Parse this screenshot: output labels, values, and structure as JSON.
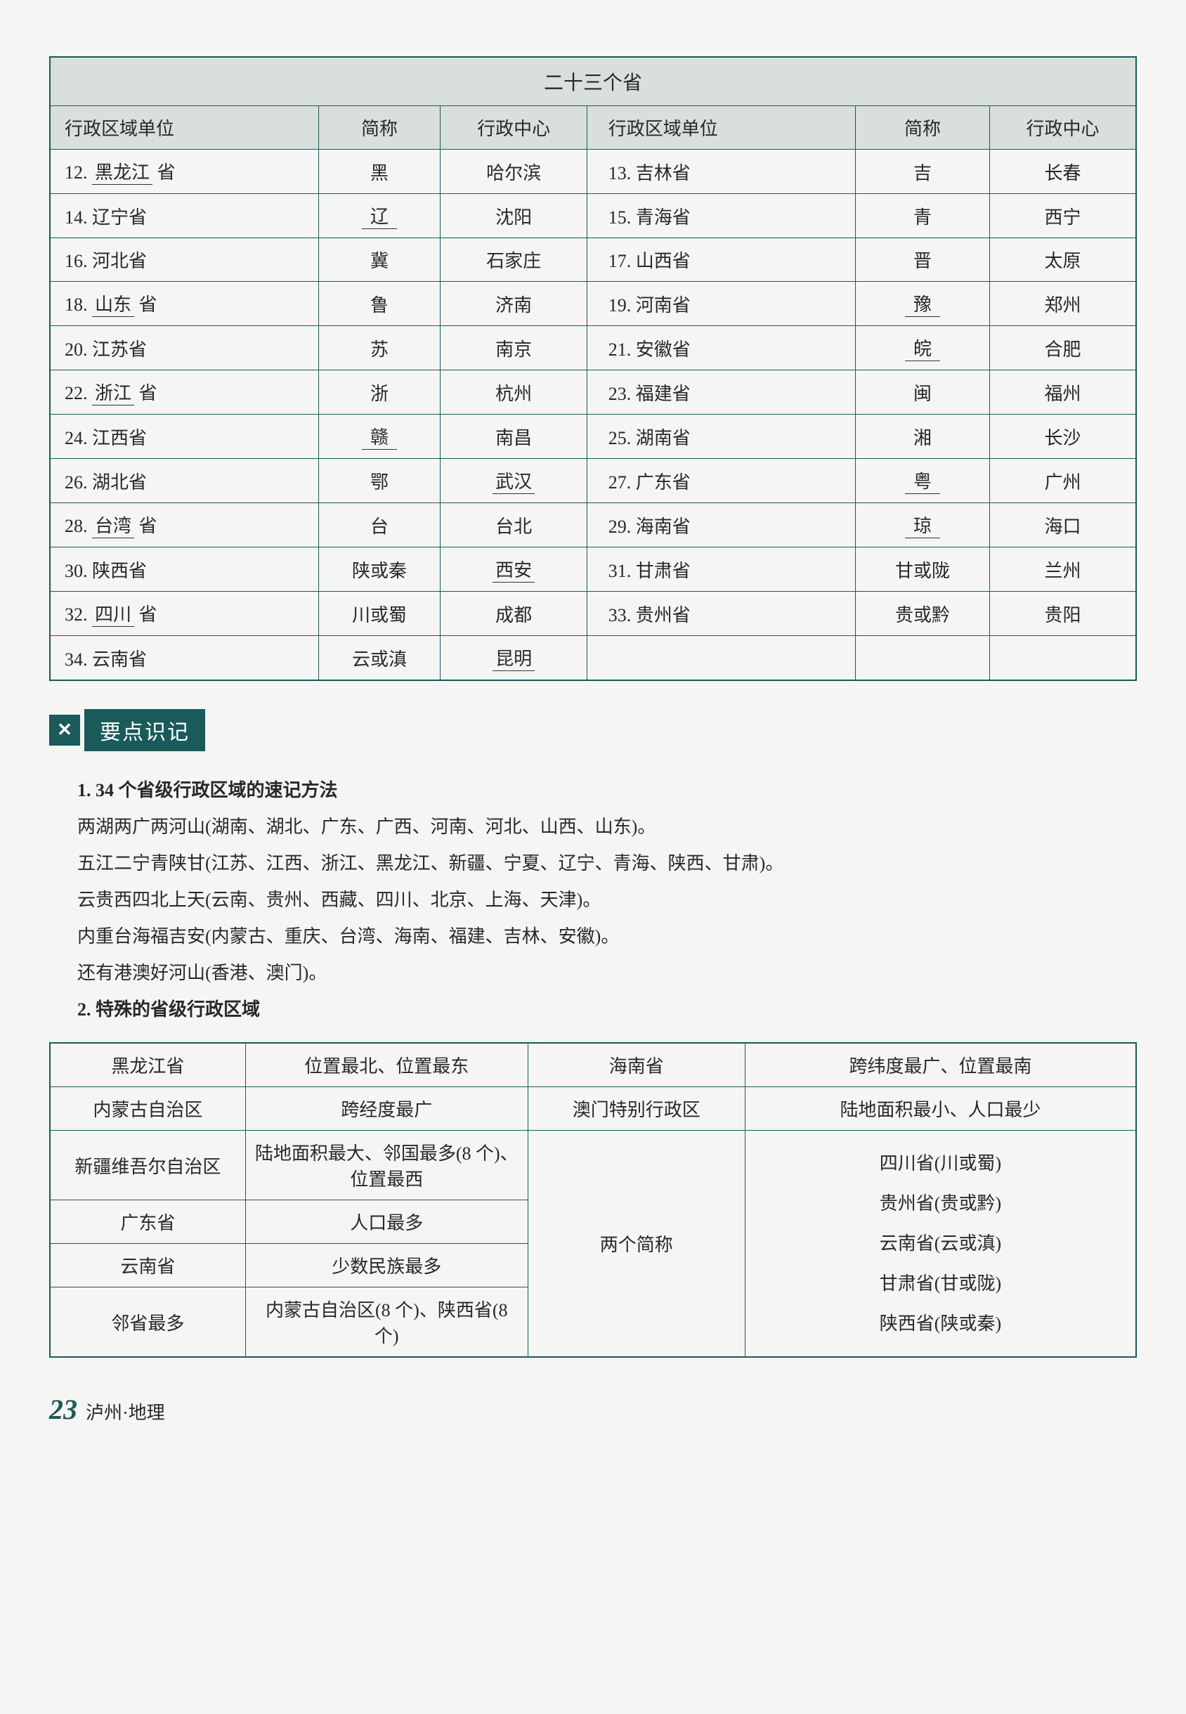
{
  "table1": {
    "title": "二十三个省",
    "headers": [
      "行政区域单位",
      "简称",
      "行政中心",
      "行政区域单位",
      "简称",
      "行政中心"
    ],
    "rows": [
      {
        "c1_num": "12.",
        "c1_blank": "黑龙江",
        "c1_suffix": "省",
        "c2": "黑",
        "c3": "哈尔滨",
        "c4": "13. 吉林省",
        "c5": "吉",
        "c6": "长春",
        "c2_blank": false,
        "c3_blank": false,
        "c5_blank": false,
        "c6_blank": false
      },
      {
        "c1_num": "14. 辽宁省",
        "c1_blank": "",
        "c1_suffix": "",
        "c2": "辽",
        "c3": "沈阳",
        "c4": "15. 青海省",
        "c5": "青",
        "c6": "西宁",
        "c2_blank": true,
        "c3_blank": false,
        "c5_blank": false,
        "c6_blank": false
      },
      {
        "c1_num": "16. 河北省",
        "c1_blank": "",
        "c1_suffix": "",
        "c2": "冀",
        "c3": "石家庄",
        "c4": "17. 山西省",
        "c5": "晋",
        "c6": "太原",
        "c2_blank": false,
        "c3_blank": false,
        "c5_blank": false,
        "c6_blank": false
      },
      {
        "c1_num": "18.",
        "c1_blank": "山东",
        "c1_suffix": "省",
        "c2": "鲁",
        "c3": "济南",
        "c4": "19. 河南省",
        "c5": "豫",
        "c6": "郑州",
        "c2_blank": false,
        "c3_blank": false,
        "c5_blank": true,
        "c6_blank": false
      },
      {
        "c1_num": "20. 江苏省",
        "c1_blank": "",
        "c1_suffix": "",
        "c2": "苏",
        "c3": "南京",
        "c4": "21. 安徽省",
        "c5": "皖",
        "c6": "合肥",
        "c2_blank": false,
        "c3_blank": false,
        "c5_blank": true,
        "c6_blank": false
      },
      {
        "c1_num": "22.",
        "c1_blank": "浙江",
        "c1_suffix": "省",
        "c2": "浙",
        "c3": "杭州",
        "c4": "23. 福建省",
        "c5": "闽",
        "c6": "福州",
        "c2_blank": false,
        "c3_blank": false,
        "c5_blank": false,
        "c6_blank": false
      },
      {
        "c1_num": "24. 江西省",
        "c1_blank": "",
        "c1_suffix": "",
        "c2": "赣",
        "c3": "南昌",
        "c4": "25. 湖南省",
        "c5": "湘",
        "c6": "长沙",
        "c2_blank": true,
        "c3_blank": false,
        "c5_blank": false,
        "c6_blank": false
      },
      {
        "c1_num": "26. 湖北省",
        "c1_blank": "",
        "c1_suffix": "",
        "c2": "鄂",
        "c3": "武汉",
        "c4": "27. 广东省",
        "c5": "粤",
        "c6": "广州",
        "c2_blank": false,
        "c3_blank": true,
        "c5_blank": true,
        "c6_blank": false
      },
      {
        "c1_num": "28.",
        "c1_blank": "台湾",
        "c1_suffix": "省",
        "c2": "台",
        "c3": "台北",
        "c4": "29. 海南省",
        "c5": "琼",
        "c6": "海口",
        "c2_blank": false,
        "c3_blank": false,
        "c5_blank": true,
        "c6_blank": false
      },
      {
        "c1_num": "30. 陕西省",
        "c1_blank": "",
        "c1_suffix": "",
        "c2": "陕或秦",
        "c3": "西安",
        "c4": "31. 甘肃省",
        "c5": "甘或陇",
        "c6": "兰州",
        "c2_blank": false,
        "c3_blank": true,
        "c5_blank": false,
        "c6_blank": false
      },
      {
        "c1_num": "32.",
        "c1_blank": "四川",
        "c1_suffix": "省",
        "c2": "川或蜀",
        "c3": "成都",
        "c4": "33. 贵州省",
        "c5": "贵或黔",
        "c6": "贵阳",
        "c2_blank": false,
        "c3_blank": false,
        "c5_blank": false,
        "c6_blank": false
      },
      {
        "c1_num": "34. 云南省",
        "c1_blank": "",
        "c1_suffix": "",
        "c2": "云或滇",
        "c3": "昆明",
        "c4": "",
        "c5": "",
        "c6": "",
        "c2_blank": false,
        "c3_blank": true,
        "c5_blank": false,
        "c6_blank": false
      }
    ]
  },
  "section": {
    "label": "要点识记",
    "h1": {
      "title": "1. 34 个省级行政区域的速记方法",
      "lines": [
        "两湖两广两河山(湖南、湖北、广东、广西、河南、河北、山西、山东)。",
        "五江二宁青陕甘(江苏、江西、浙江、黑龙江、新疆、宁夏、辽宁、青海、陕西、甘肃)。",
        "云贵西四北上天(云南、贵州、西藏、四川、北京、上海、天津)。",
        "内重台海福吉安(内蒙古、重庆、台湾、海南、福建、吉林、安徽)。",
        "还有港澳好河山(香港、澳门)。"
      ]
    },
    "h2": {
      "title": "2. 特殊的省级行政区域"
    }
  },
  "table2": {
    "r1c1": "黑龙江省",
    "r1c2": "位置最北、位置最东",
    "r1c3": "海南省",
    "r1c4": "跨纬度最广、位置最南",
    "r2c1": "内蒙古自治区",
    "r2c2": "跨经度最广",
    "r2c3": "澳门特别行政区",
    "r2c4": "陆地面积最小、人口最少",
    "r3c1": "新疆维吾尔自治区",
    "r3c2": "陆地面积最大、邻国最多(8 个)、位置最西",
    "r4c1": "广东省",
    "r4c2": "人口最多",
    "r5c1": "云南省",
    "r5c2": "少数民族最多",
    "r6c1": "邻省最多",
    "r6c2": "内蒙古自治区(8 个)、陕西省(8 个)",
    "merge_c3": "两个简称",
    "merge_c4_l1": "四川省(川或蜀)",
    "merge_c4_l2": "贵州省(贵或黔)",
    "merge_c4_l3": "云南省(云或滇)",
    "merge_c4_l4": "甘肃省(甘或陇)",
    "merge_c4_l5": "陕西省(陕或秦)"
  },
  "footer": {
    "page": "23",
    "text": "泸州·地理"
  }
}
